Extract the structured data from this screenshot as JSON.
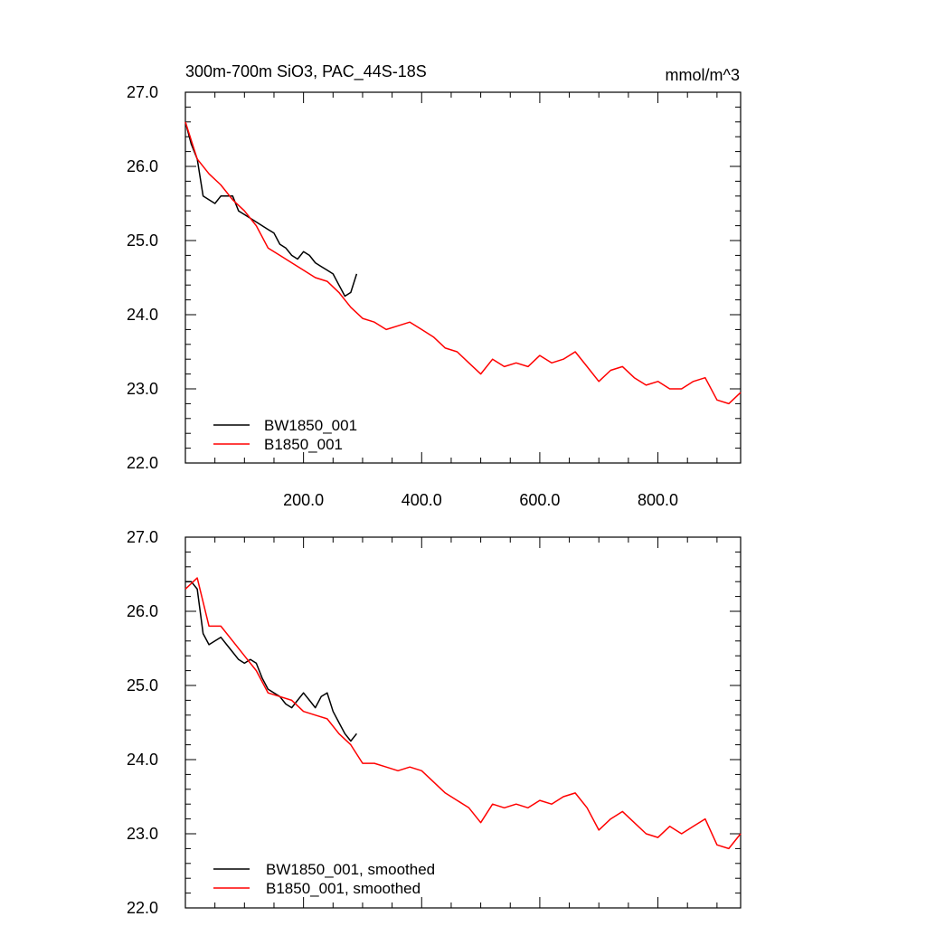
{
  "colors": {
    "bw": "#000000",
    "b": "#ff0000"
  },
  "chart_data": [
    {
      "type": "line",
      "title": "300m-700m SiO3, PAC_44S-18S",
      "units": "mmol/m^3",
      "xlim": [
        0,
        940
      ],
      "ylim": [
        22.0,
        27.0
      ],
      "xtick_values": [
        200,
        400,
        600,
        800
      ],
      "xtick_labels": [
        "200.0",
        "400.0",
        "600.0",
        "800.0"
      ],
      "ytick_values": [
        22,
        23,
        24,
        25,
        26,
        27
      ],
      "ytick_labels": [
        "22.0",
        "23.0",
        "24.0",
        "25.0",
        "26.0",
        "27.0"
      ],
      "legend_position": "bottom-left",
      "series": [
        {
          "name": "BW1850_001",
          "color": "#000000",
          "x": [
            0,
            10,
            20,
            30,
            40,
            50,
            60,
            70,
            80,
            90,
            100,
            110,
            120,
            130,
            140,
            150,
            160,
            170,
            180,
            190,
            200,
            210,
            220,
            230,
            240,
            250,
            260,
            270,
            280,
            290
          ],
          "y": [
            26.6,
            26.3,
            26.1,
            25.6,
            25.55,
            25.5,
            25.6,
            25.6,
            25.6,
            25.4,
            25.35,
            25.3,
            25.25,
            25.2,
            25.15,
            25.1,
            24.95,
            24.9,
            24.8,
            24.75,
            24.85,
            24.8,
            24.7,
            24.65,
            24.6,
            24.55,
            24.4,
            24.25,
            24.3,
            24.55
          ]
        },
        {
          "name": "B1850_001",
          "color": "#ff0000",
          "x": [
            0,
            20,
            40,
            60,
            80,
            100,
            120,
            140,
            160,
            180,
            200,
            220,
            240,
            260,
            280,
            300,
            320,
            340,
            360,
            380,
            400,
            420,
            440,
            460,
            480,
            500,
            520,
            540,
            560,
            580,
            600,
            620,
            640,
            660,
            680,
            700,
            720,
            740,
            760,
            780,
            800,
            820,
            840,
            860,
            880,
            900,
            920,
            940
          ],
          "y": [
            26.6,
            26.1,
            25.9,
            25.75,
            25.55,
            25.4,
            25.2,
            24.9,
            24.8,
            24.7,
            24.6,
            24.5,
            24.45,
            24.3,
            24.1,
            23.95,
            23.9,
            23.8,
            23.85,
            23.9,
            23.8,
            23.7,
            23.55,
            23.5,
            23.35,
            23.2,
            23.4,
            23.3,
            23.35,
            23.3,
            23.45,
            23.35,
            23.4,
            23.5,
            23.3,
            23.1,
            23.25,
            23.3,
            23.15,
            23.05,
            23.1,
            23.0,
            23.0,
            23.1,
            23.15,
            22.85,
            22.8,
            22.95
          ]
        }
      ]
    },
    {
      "type": "line",
      "title": "",
      "units": "",
      "xlim": [
        0,
        940
      ],
      "ylim": [
        22.0,
        27.0
      ],
      "xtick_values": [],
      "xtick_labels": [],
      "ytick_values": [
        22,
        23,
        24,
        25,
        26,
        27
      ],
      "ytick_labels": [
        "22.0",
        "23.0",
        "24.0",
        "25.0",
        "26.0",
        "27.0"
      ],
      "legend_position": "bottom-left",
      "series": [
        {
          "name": "BW1850_001, smoothed",
          "color": "#000000",
          "x": [
            0,
            10,
            20,
            30,
            40,
            50,
            60,
            70,
            80,
            90,
            100,
            110,
            120,
            130,
            140,
            150,
            160,
            170,
            180,
            190,
            200,
            210,
            220,
            230,
            240,
            250,
            260,
            270,
            280,
            290
          ],
          "y": [
            26.4,
            26.4,
            26.3,
            25.7,
            25.55,
            25.6,
            25.65,
            25.55,
            25.45,
            25.35,
            25.3,
            25.35,
            25.3,
            25.1,
            24.95,
            24.9,
            24.85,
            24.75,
            24.7,
            24.8,
            24.9,
            24.8,
            24.7,
            24.85,
            24.9,
            24.65,
            24.5,
            24.35,
            24.25,
            24.35
          ]
        },
        {
          "name": "B1850_001, smoothed",
          "color": "#ff0000",
          "x": [
            0,
            20,
            40,
            60,
            80,
            100,
            120,
            140,
            160,
            180,
            200,
            220,
            240,
            260,
            280,
            300,
            320,
            340,
            360,
            380,
            400,
            420,
            440,
            460,
            480,
            500,
            520,
            540,
            560,
            580,
            600,
            620,
            640,
            660,
            680,
            700,
            720,
            740,
            760,
            780,
            800,
            820,
            840,
            860,
            880,
            900,
            920,
            940
          ],
          "y": [
            26.3,
            26.45,
            25.8,
            25.8,
            25.6,
            25.4,
            25.2,
            24.9,
            24.85,
            24.8,
            24.65,
            24.6,
            24.55,
            24.35,
            24.2,
            23.95,
            23.95,
            23.9,
            23.85,
            23.9,
            23.85,
            23.7,
            23.55,
            23.45,
            23.35,
            23.15,
            23.4,
            23.35,
            23.4,
            23.35,
            23.45,
            23.4,
            23.5,
            23.55,
            23.35,
            23.05,
            23.2,
            23.3,
            23.15,
            23.0,
            22.95,
            23.1,
            23.0,
            23.1,
            23.2,
            22.85,
            22.8,
            23.0
          ]
        }
      ]
    }
  ]
}
